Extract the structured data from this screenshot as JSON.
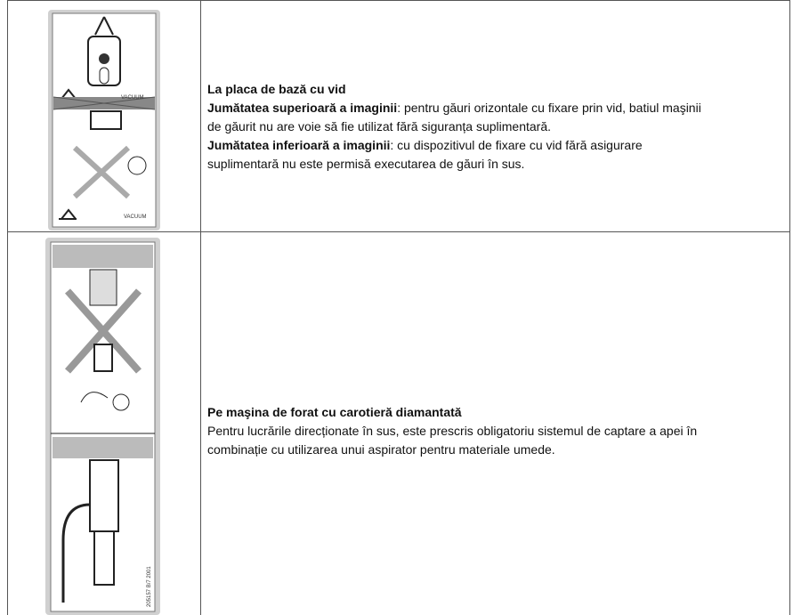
{
  "table": {
    "rows": [
      {
        "image": {
          "labels": [
            "VACUUM",
            "VACUUM"
          ]
        },
        "title": "La placa de bază cu vid",
        "paragraphs": [
          {
            "bold": "Jumătatea superioară a imaginii",
            "text": ": pentru găuri orizontale cu fixare prin vid, batiul maşinii de găurit nu are voie să fie utilizat fără siguranța suplimentară."
          },
          {
            "bold": "Jumătatea inferioară a imaginii",
            "text": ": cu dispozitivul de fixare cu vid fără asigurare suplimentară nu este permisă executarea de găuri în sus."
          }
        ]
      },
      {
        "image": {
          "labels": [
            "205157 B/7 2001"
          ]
        },
        "title": "Pe maşina de forat cu carotieră diamantată",
        "paragraphs": [
          {
            "text": "Pentru lucrările direcționate în sus, este prescris obligatoriu sistemul de captare a apei în combinație cu utilizarea unui aspirator pentru materiale umede."
          }
        ]
      }
    ]
  }
}
